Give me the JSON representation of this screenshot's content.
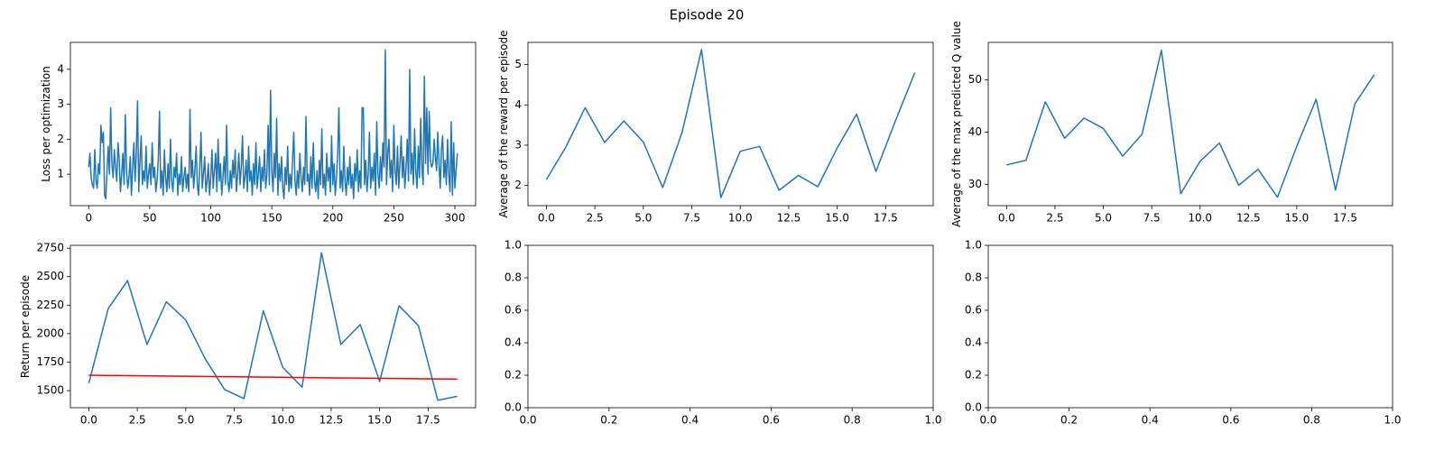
{
  "title": "Episode 20",
  "chart_data": [
    {
      "type": "line",
      "ylabel": "Loss per optimization",
      "xlim": [
        -15,
        317
      ],
      "xticks": [
        0,
        50,
        100,
        150,
        200,
        250,
        300
      ],
      "ylim": [
        0.1,
        4.77
      ],
      "yticks": [
        1,
        2,
        3,
        4
      ],
      "series": [
        {
          "color": "#1f77b4",
          "x": [
            0,
            1,
            2,
            3,
            4,
            5,
            6,
            7,
            8,
            9,
            10,
            11,
            12,
            13,
            14,
            15,
            16,
            17,
            18,
            19,
            20,
            21,
            22,
            23,
            24,
            25,
            26,
            27,
            28,
            29,
            30,
            31,
            32,
            33,
            34,
            35,
            36,
            37,
            38,
            39,
            40,
            41,
            42,
            43,
            44,
            45,
            46,
            47,
            48,
            49,
            50,
            51,
            52,
            53,
            54,
            55,
            56,
            57,
            58,
            59,
            60,
            61,
            62,
            63,
            64,
            65,
            66,
            67,
            68,
            69,
            70,
            71,
            72,
            73,
            74,
            75,
            76,
            77,
            78,
            79,
            80,
            81,
            82,
            83,
            84,
            85,
            86,
            87,
            88,
            89,
            90,
            91,
            92,
            93,
            94,
            95,
            96,
            97,
            98,
            99,
            100,
            101,
            102,
            103,
            104,
            105,
            106,
            107,
            108,
            109,
            110,
            111,
            112,
            113,
            114,
            115,
            116,
            117,
            118,
            119,
            120,
            121,
            122,
            123,
            124,
            125,
            126,
            127,
            128,
            129,
            130,
            131,
            132,
            133,
            134,
            135,
            136,
            137,
            138,
            139,
            140,
            141,
            142,
            143,
            144,
            145,
            146,
            147,
            148,
            149,
            150,
            151,
            152,
            153,
            154,
            155,
            156,
            157,
            158,
            159,
            160,
            161,
            162,
            163,
            164,
            165,
            166,
            167,
            168,
            169,
            170,
            171,
            172,
            173,
            174,
            175,
            176,
            177,
            178,
            179,
            180,
            181,
            182,
            183,
            184,
            185,
            186,
            187,
            188,
            189,
            190,
            191,
            192,
            193,
            194,
            195,
            196,
            197,
            198,
            199,
            200,
            201,
            202,
            203,
            204,
            205,
            206,
            207,
            208,
            209,
            210,
            211,
            212,
            213,
            214,
            215,
            216,
            217,
            218,
            219,
            220,
            221,
            222,
            223,
            224,
            225,
            226,
            227,
            228,
            229,
            230,
            231,
            232,
            233,
            234,
            235,
            236,
            237,
            238,
            239,
            240,
            241,
            242,
            243,
            244,
            245,
            246,
            247,
            248,
            249,
            250,
            251,
            252,
            253,
            254,
            255,
            256,
            257,
            258,
            259,
            260,
            261,
            262,
            263,
            264,
            265,
            266,
            267,
            268,
            269,
            270,
            271,
            272,
            273,
            274,
            275,
            276,
            277,
            278,
            279,
            280,
            281,
            282,
            283,
            284,
            285,
            286,
            287,
            288,
            289,
            290,
            291,
            292,
            293,
            294,
            295,
            296,
            297,
            298,
            299,
            300,
            301,
            302
          ],
          "values": [
            1.2,
            1.6,
            0.9,
            0.7,
            0.6,
            1.7,
            0.8,
            0.6,
            1.3,
            1.0,
            2.4,
            1.9,
            2.2,
            0.4,
            0.3,
            1.1,
            1.8,
            1.0,
            2.9,
            1.3,
            0.9,
            1.7,
            1.2,
            0.8,
            1.9,
            1.4,
            0.5,
            1.0,
            1.6,
            0.7,
            2.7,
            1.1,
            0.6,
            0.9,
            1.5,
            0.4,
            1.2,
            1.9,
            0.8,
            1.6,
            3.1,
            0.5,
            1.4,
            2.1,
            0.7,
            1.1,
            0.8,
            1.8,
            0.6,
            1.0,
            1.3,
            0.7,
            1.9,
            0.9,
            1.2,
            0.5,
            0.8,
            1.4,
            2.8,
            0.6,
            1.1,
            0.4,
            1.7,
            0.9,
            0.5,
            1.3,
            0.6,
            2.0,
            0.8,
            0.5,
            1.2,
            0.9,
            1.6,
            0.4,
            1.0,
            0.7,
            1.5,
            0.5,
            0.9,
            1.2,
            0.6,
            1.0,
            0.5,
            2.85,
            0.9,
            1.4,
            0.6,
            1.1,
            1.8,
            0.7,
            0.4,
            1.2,
            2.2,
            0.6,
            1.0,
            1.5,
            0.5,
            0.8,
            1.3,
            0.4,
            0.9,
            1.7,
            0.6,
            1.1,
            1.6,
            0.5,
            2.0,
            0.8,
            1.3,
            0.4,
            0.9,
            1.5,
            0.7,
            2.4,
            0.8,
            0.5,
            1.1,
            0.6,
            1.4,
            0.9,
            1.7,
            0.5,
            1.0,
            1.6,
            0.7,
            1.2,
            2.1,
            0.6,
            0.9,
            1.4,
            0.5,
            1.8,
            0.8,
            1.1,
            0.4,
            1.3,
            0.7,
            1.9,
            0.6,
            1.0,
            1.5,
            0.5,
            1.2,
            0.8,
            1.7,
            0.6,
            1.0,
            2.4,
            0.7,
            3.4,
            1.1,
            0.5,
            1.6,
            0.9,
            2.6,
            0.4,
            1.3,
            0.8,
            1.5,
            0.6,
            0.3,
            1.2,
            0.7,
            1.8,
            0.5,
            1.0,
            0.6,
            1.4,
            2.2,
            0.8,
            0.4,
            1.1,
            0.6,
            1.6,
            0.9,
            0.5,
            1.2,
            0.7,
            2.65,
            0.8,
            1.0,
            0.4,
            1.5,
            0.6,
            1.9,
            0.8,
            0.5,
            1.1,
            0.3,
            1.4,
            0.7,
            2.3,
            0.6,
            1.0,
            0.4,
            1.6,
            0.8,
            1.2,
            0.5,
            2.1,
            0.7,
            1.3,
            0.4,
            0.9,
            1.6,
            2.9,
            0.6,
            1.1,
            0.5,
            1.8,
            0.8,
            0.4,
            1.2,
            0.7,
            1.5,
            0.6,
            1.0,
            0.3,
            1.3,
            0.8,
            1.7,
            0.5,
            1.1,
            0.6,
            2.9,
            2.9,
            0.7,
            1.4,
            0.5,
            1.0,
            2.2,
            0.6,
            1.2,
            0.8,
            1.6,
            0.4,
            2.5,
            1.0,
            0.6,
            1.5,
            0.8,
            1.9,
            1.2,
            4.55,
            0.7,
            1.6,
            2.0,
            0.9,
            1.4,
            0.5,
            2.4,
            1.1,
            0.7,
            1.8,
            0.6,
            1.3,
            2.1,
            0.9,
            1.5,
            0.6,
            1.2,
            2.0,
            0.8,
            4.0,
            1.0,
            1.6,
            0.7,
            2.3,
            1.1,
            0.6,
            1.8,
            0.9,
            2.6,
            1.2,
            0.7,
            3.8,
            1.3,
            2.9,
            1.0,
            2.8,
            1.4,
            1.2,
            1.3,
            2.0,
            1.5,
            1.1,
            2.2,
            1.3,
            0.6,
            1.7,
            2.1,
            0.9,
            1.4,
            0.7,
            2.0,
            1.0,
            0.5,
            2.5,
            0.4,
            1.9,
            0.6,
            1.1,
            1.6
          ]
        }
      ]
    },
    {
      "type": "line",
      "ylabel": "Average of the reward per episode",
      "xlim": [
        -0.95,
        19.95
      ],
      "xticks": [
        {
          "value": 0,
          "label": "0.0"
        },
        2.5,
        {
          "value": 5,
          "label": "5.0"
        },
        7.5,
        {
          "value": 10,
          "label": "10.0"
        },
        12.5,
        {
          "value": 15,
          "label": "15.0"
        },
        17.5
      ],
      "ylim": [
        1.5,
        5.55
      ],
      "yticks": [
        2,
        3,
        4,
        5
      ],
      "series": [
        {
          "color": "#1f77b4",
          "x": [
            0,
            1,
            2,
            3,
            4,
            5,
            6,
            7,
            8,
            9,
            10,
            11,
            12,
            13,
            14,
            15,
            16,
            17,
            18,
            19
          ],
          "values": [
            2.15,
            2.95,
            3.93,
            3.07,
            3.6,
            3.08,
            1.95,
            3.32,
            5.37,
            1.7,
            2.85,
            2.97,
            1.88,
            2.25,
            1.97,
            2.93,
            3.77,
            2.35,
            3.6,
            4.8
          ]
        }
      ]
    },
    {
      "type": "line",
      "ylabel": "Average of the max predicted Q value",
      "xlim": [
        -0.95,
        19.95
      ],
      "xticks": [
        {
          "value": 0,
          "label": "0.0"
        },
        2.5,
        {
          "value": 5,
          "label": "5.0"
        },
        7.5,
        {
          "value": 10,
          "label": "10.0"
        },
        12.5,
        {
          "value": 15,
          "label": "15.0"
        },
        17.5
      ],
      "ylim": [
        25.9,
        57.2
      ],
      "yticks": [
        30,
        40,
        50
      ],
      "series": [
        {
          "color": "#1f77b4",
          "x": [
            0,
            1,
            2,
            3,
            4,
            5,
            6,
            7,
            8,
            9,
            10,
            11,
            12,
            13,
            14,
            15,
            16,
            17,
            18,
            19
          ],
          "values": [
            33.7,
            34.6,
            45.8,
            38.8,
            42.7,
            40.7,
            35.4,
            39.6,
            55.7,
            28.2,
            34.4,
            37.9,
            29.8,
            32.9,
            27.5,
            37.3,
            46.3,
            28.9,
            45.4,
            51.0
          ]
        }
      ]
    },
    {
      "type": "line",
      "ylabel": "Return per episode",
      "xlim": [
        -0.95,
        19.95
      ],
      "xticks": [
        {
          "value": 0,
          "label": "0.0"
        },
        2.5,
        {
          "value": 5,
          "label": "5.0"
        },
        7.5,
        {
          "value": 10,
          "label": "10.0"
        },
        12.5,
        {
          "value": 15,
          "label": "15.0"
        },
        17.5
      ],
      "ylim": [
        1350,
        2775
      ],
      "yticks": [
        1500,
        1750,
        2000,
        2250,
        2500,
        2750
      ],
      "series": [
        {
          "color": "#1f77b4",
          "x": [
            0,
            1,
            2,
            3,
            4,
            5,
            6,
            7,
            8,
            9,
            10,
            11,
            12,
            13,
            14,
            15,
            16,
            17,
            18,
            19
          ],
          "values": [
            1565,
            2220,
            2465,
            1905,
            2280,
            2120,
            1780,
            1510,
            1430,
            2200,
            1705,
            1530,
            2710,
            1905,
            2080,
            1580,
            2245,
            2070,
            1415,
            1450
          ]
        },
        {
          "color": "#ff0000",
          "x": [
            0,
            19
          ],
          "values": [
            1635,
            1600
          ]
        }
      ]
    },
    {
      "type": "line",
      "xlim": [
        0,
        1
      ],
      "xticks": [
        {
          "value": 0,
          "label": "0.0"
        },
        0.2,
        0.4,
        0.6,
        0.8,
        {
          "value": 1,
          "label": "1.0"
        }
      ],
      "ylim": [
        0,
        1
      ],
      "yticks": [
        {
          "value": 0,
          "label": "0.0"
        },
        0.2,
        0.4,
        0.6,
        0.8,
        {
          "value": 1,
          "label": "1.0"
        }
      ],
      "series": []
    },
    {
      "type": "line",
      "xlim": [
        0,
        1
      ],
      "xticks": [
        {
          "value": 0,
          "label": "0.0"
        },
        0.2,
        0.4,
        0.6,
        0.8,
        {
          "value": 1,
          "label": "1.0"
        }
      ],
      "ylim": [
        0,
        1
      ],
      "yticks": [
        {
          "value": 0,
          "label": "0.0"
        },
        0.2,
        0.4,
        0.6,
        0.8,
        {
          "value": 1,
          "label": "1.0"
        }
      ],
      "series": []
    }
  ]
}
